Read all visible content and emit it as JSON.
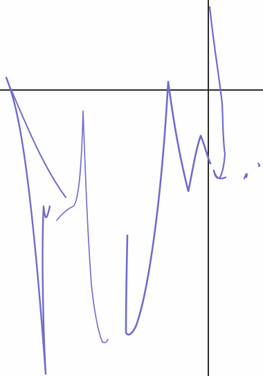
{
  "canvas": {
    "background": "#fefefe"
  },
  "guides": {
    "color": "#2b2b2b"
  },
  "strokes": {
    "color": "#6f6bcc"
  }
}
